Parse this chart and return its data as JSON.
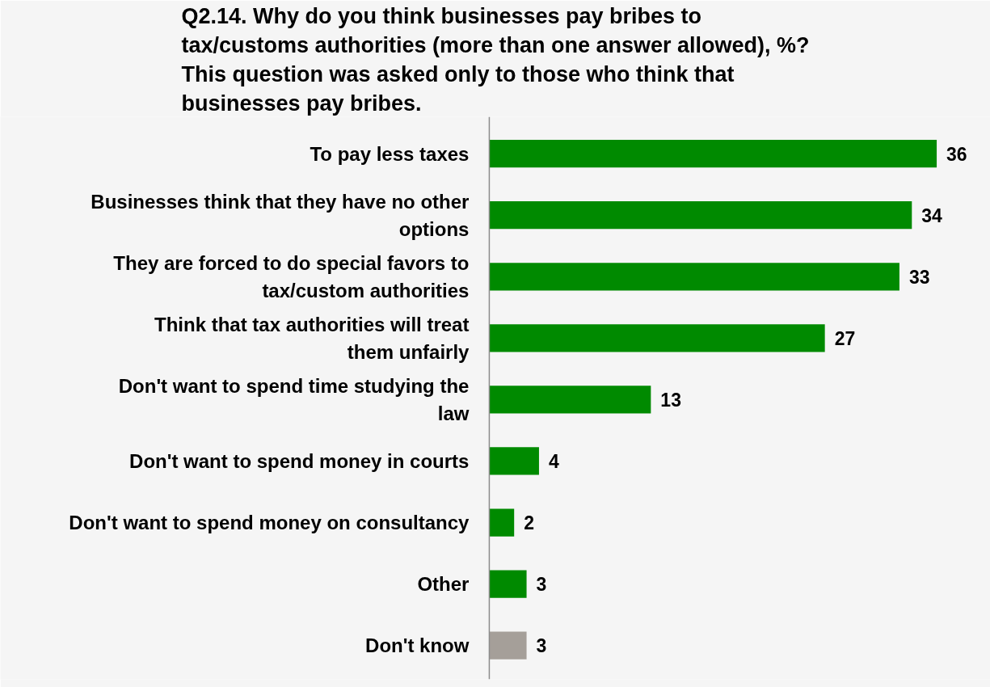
{
  "chart_data": {
    "type": "bar",
    "orientation": "horizontal",
    "title": "Q2.14. Why do you think businesses pay bribes to tax/customs authorities (more than one answer allowed), %? This question was asked only to those who think that businesses pay bribes.",
    "categories": [
      "To pay less taxes",
      "Businesses think that they have no other options",
      "They are forced to do special favors to tax/custom authorities",
      "Think that tax authorities will treat them unfairly",
      "Don't want to spend time studying the law",
      "Don't want to spend money in courts",
      "Don't want to spend money on consultancy",
      "Other",
      "Don't know"
    ],
    "values": [
      36,
      34,
      33,
      27,
      13,
      4,
      2,
      3,
      3
    ],
    "colors": [
      "#008a00",
      "#008a00",
      "#008a00",
      "#008a00",
      "#008a00",
      "#008a00",
      "#008a00",
      "#008a00",
      "#a59f99"
    ],
    "data_labels": true
  }
}
